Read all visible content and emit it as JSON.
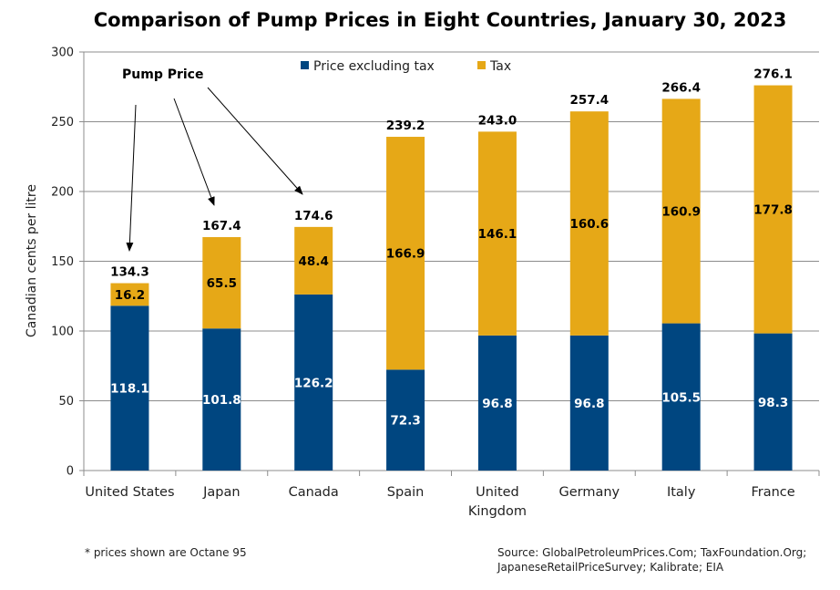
{
  "chart_data": {
    "type": "bar",
    "stacked": true,
    "title": "Comparison of Pump Prices in Eight Countries, January 30, 2023",
    "ylabel": "Canadian cents per litre",
    "xlabel": "",
    "ylim": [
      0,
      300
    ],
    "yticks": [
      0,
      50,
      100,
      150,
      200,
      250,
      300
    ],
    "grid": true,
    "legend_position": "top",
    "categories": [
      [
        "United States"
      ],
      [
        "Japan"
      ],
      [
        "Canada"
      ],
      [
        "Spain"
      ],
      [
        "United",
        "Kingdom"
      ],
      [
        "Germany"
      ],
      [
        "Italy"
      ],
      [
        "France"
      ]
    ],
    "series": [
      {
        "name": "Price excluding tax",
        "color": "#004680",
        "values": [
          118.1,
          101.8,
          126.2,
          72.3,
          96.8,
          96.8,
          105.5,
          98.3
        ]
      },
      {
        "name": "Tax",
        "color": "#E6A817",
        "values": [
          16.2,
          65.5,
          48.4,
          166.9,
          146.1,
          160.6,
          160.9,
          177.8
        ]
      }
    ],
    "totals": [
      "134.3",
      "167.4",
      "174.6",
      "239.2",
      "243.0",
      "257.4",
      "266.4",
      "276.1"
    ],
    "base_labels": [
      "118.1",
      "101.8",
      "126.2",
      "72.3",
      "96.8",
      "96.8",
      "105.5",
      "98.3"
    ],
    "tax_labels": [
      "16.2",
      "65.5",
      "48.4",
      "166.9",
      "146.1",
      "160.6",
      "160.9",
      "177.8"
    ],
    "annotation": {
      "text": "Pump Price",
      "points_to": [
        "United States",
        "Japan",
        "Canada"
      ]
    }
  },
  "footnote": "* prices shown are Octane 95",
  "source_lines": [
    "Source: GlobalPetroleumPrices.Com; TaxFoundation.Org;",
    "JapaneseRetailPriceSurvey; Kalibrate; EIA"
  ]
}
